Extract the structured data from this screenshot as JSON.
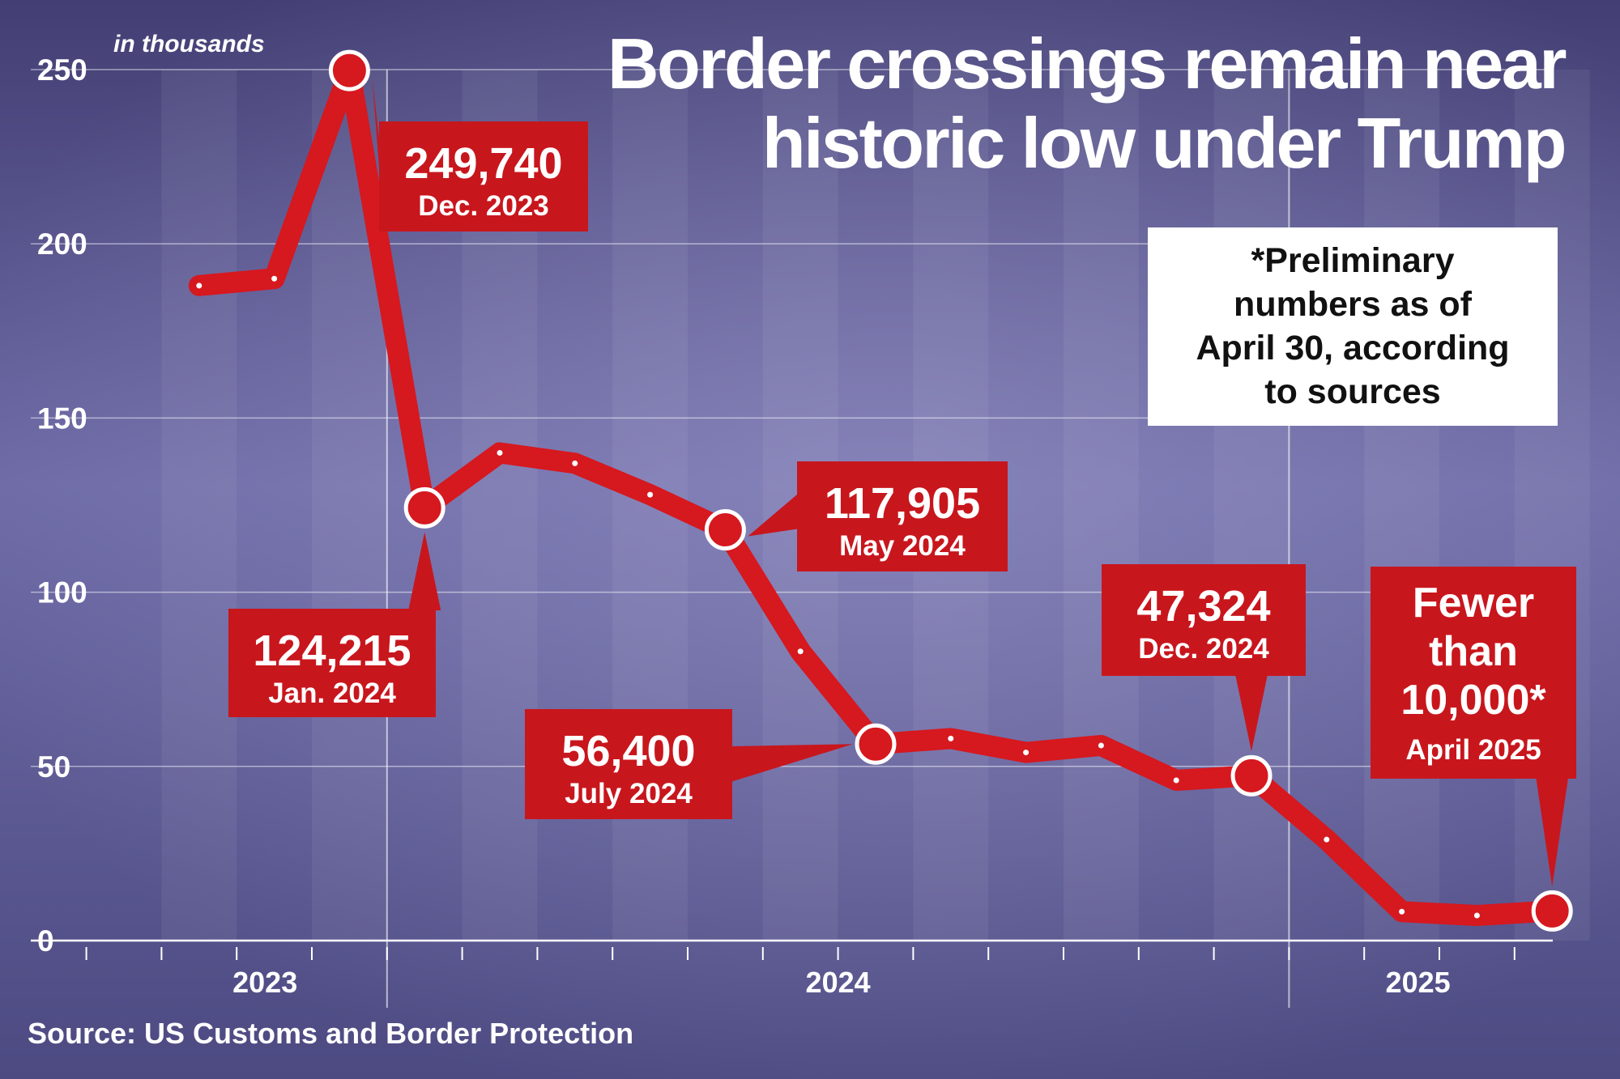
{
  "title_line1": "Border crossings remain near",
  "title_line2": "historic low under Trump",
  "note_lines": [
    "*Preliminary",
    "numbers as of",
    "April 30, according",
    "to sources"
  ],
  "source": "Source: US Customs and Border Protection",
  "colors": {
    "background": "#4a4878",
    "series": "#d6181f",
    "label_bg": "#c8161d",
    "text": "#ffffff"
  },
  "chart_data": {
    "type": "line",
    "ylabel": "in thousands",
    "ylim": [
      0,
      250
    ],
    "yticks": [
      0,
      50,
      100,
      150,
      200,
      250
    ],
    "year_labels": [
      "2023",
      "2024",
      "2025"
    ],
    "grid": "horizontal",
    "series": [
      {
        "values": [
          {
            "month": "2023-10",
            "value": 188
          },
          {
            "month": "2023-11",
            "value": 190
          },
          {
            "month": "2023-12",
            "value": 249.74
          },
          {
            "month": "2024-01",
            "value": 124.215
          },
          {
            "month": "2024-02",
            "value": 140
          },
          {
            "month": "2024-03",
            "value": 137
          },
          {
            "month": "2024-04",
            "value": 128
          },
          {
            "month": "2024-05",
            "value": 117.905
          },
          {
            "month": "2024-06",
            "value": 83
          },
          {
            "month": "2024-07",
            "value": 56.4
          },
          {
            "month": "2024-08",
            "value": 58
          },
          {
            "month": "2024-09",
            "value": 54
          },
          {
            "month": "2024-10",
            "value": 56
          },
          {
            "month": "2024-11",
            "value": 46
          },
          {
            "month": "2024-12",
            "value": 47.324
          },
          {
            "month": "2025-01",
            "value": 29
          },
          {
            "month": "2025-02",
            "value": 8.3
          },
          {
            "month": "2025-03",
            "value": 7.2
          },
          {
            "month": "2025-04",
            "value": 8.5
          }
        ]
      }
    ],
    "annotations": [
      {
        "id": "dec-2023",
        "month": "2023-12",
        "value_text": "249,740",
        "date_text": "Dec. 2023"
      },
      {
        "id": "jan-2024",
        "month": "2024-01",
        "value_text": "124,215",
        "date_text": "Jan. 2024"
      },
      {
        "id": "may-2024",
        "month": "2024-05",
        "value_text": "117,905",
        "date_text": "May 2024"
      },
      {
        "id": "july-2024",
        "month": "2024-07",
        "value_text": "56,400",
        "date_text": "July 2024"
      },
      {
        "id": "dec-2024",
        "month": "2024-12",
        "value_text": "47,324",
        "date_text": "Dec. 2024"
      },
      {
        "id": "april-2025",
        "month": "2025-04",
        "value_lines": [
          "Fewer",
          "than",
          "10,000*"
        ],
        "date_text": "April 2025"
      }
    ]
  }
}
